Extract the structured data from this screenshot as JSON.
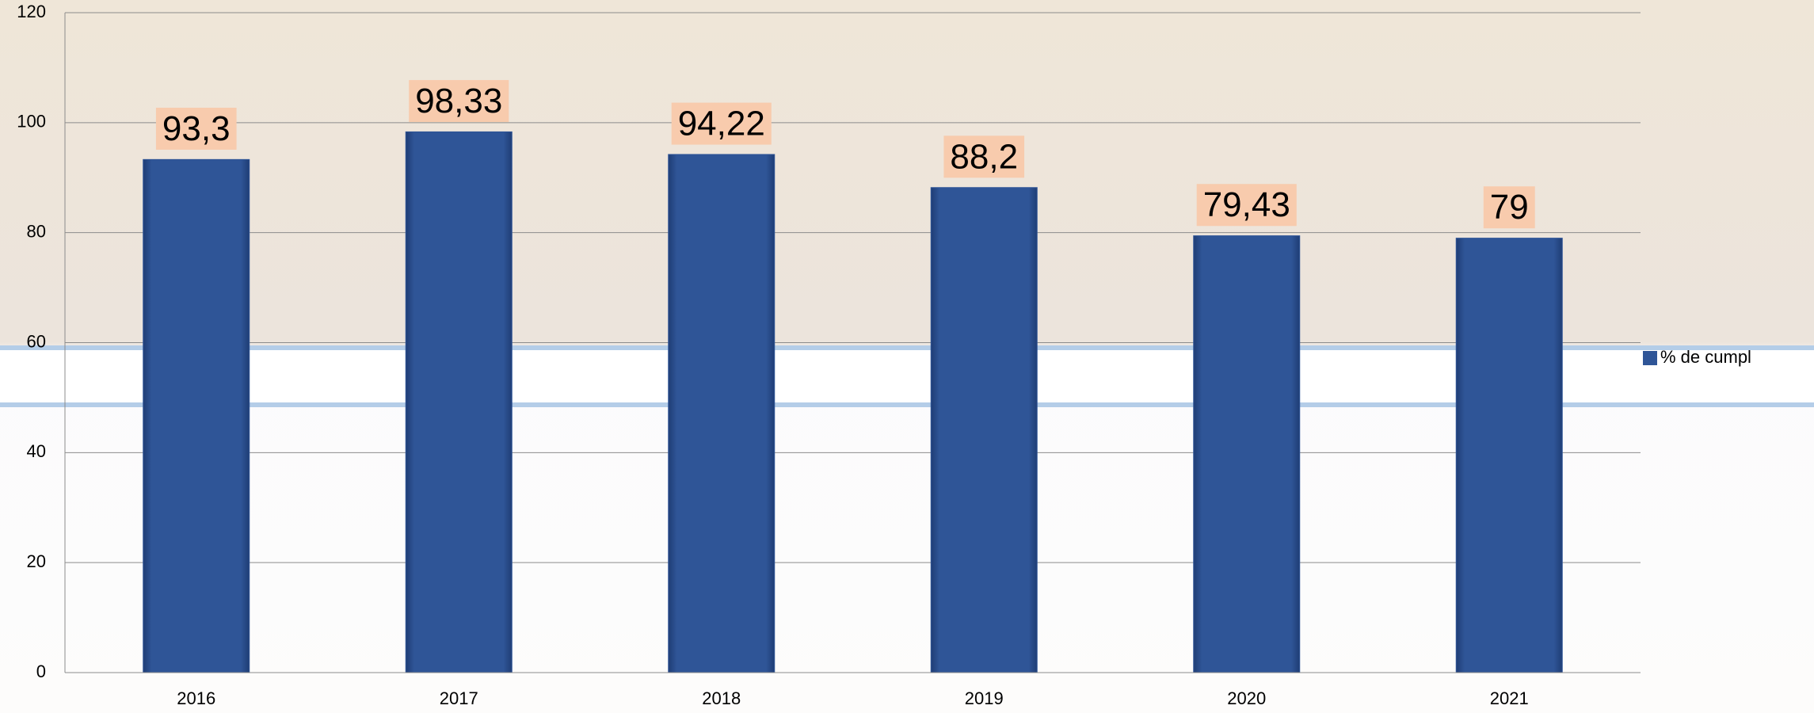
{
  "chart_data": {
    "type": "bar",
    "categories": [
      "2016",
      "2017",
      "2018",
      "2019",
      "2020",
      "2021"
    ],
    "series": [
      {
        "name": "% de cumpl",
        "color": "#2f5597",
        "values": [
          93.3,
          98.33,
          94.22,
          88.2,
          79.43,
          79
        ],
        "value_labels": [
          "93,3",
          "98,33",
          "94,22",
          "88,2",
          "79,43",
          "79"
        ]
      }
    ],
    "ylim": [
      0,
      120
    ],
    "yticks": [
      0,
      20,
      40,
      60,
      80,
      100,
      120
    ],
    "grid": true,
    "legend": "right"
  }
}
